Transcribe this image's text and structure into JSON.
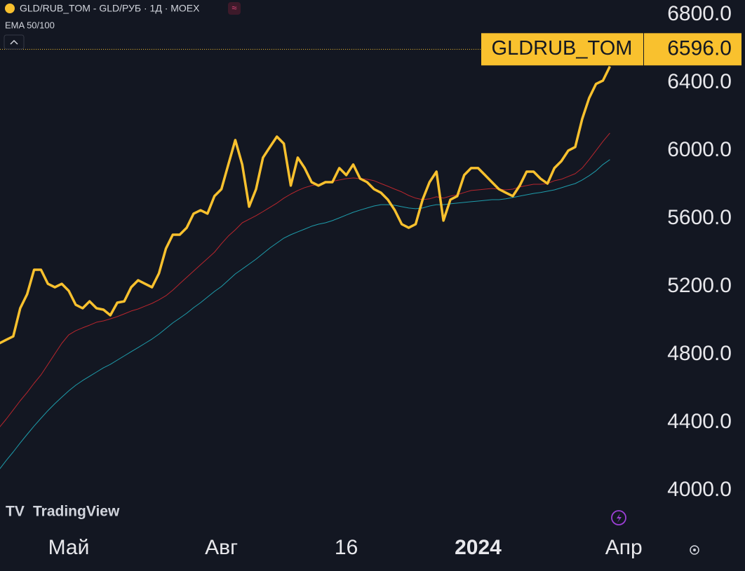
{
  "chart_data": {
    "type": "line",
    "title": "GLD/RUB_TOM - GLD/РУБ · 1Д · MOEX",
    "subtitle": "EMA 50/100",
    "watermark": "TradingView",
    "categories": [
      null,
      null,
      null,
      null,
      null,
      null,
      null,
      null,
      null,
      null,
      "Май",
      null,
      null,
      null,
      null,
      null,
      null,
      null,
      null,
      null,
      null,
      null,
      null,
      null,
      null,
      null,
      null,
      null,
      null,
      null,
      null,
      null,
      "Авг",
      null,
      null,
      null,
      null,
      null,
      null,
      null,
      null,
      null,
      null,
      null,
      null,
      null,
      null,
      null,
      null,
      null,
      "16",
      null,
      null,
      null,
      null,
      null,
      null,
      null,
      null,
      null,
      null,
      null,
      null,
      null,
      null,
      null,
      null,
      null,
      null,
      "2024",
      null,
      null,
      null,
      null,
      null,
      null,
      null,
      null,
      null,
      null,
      null,
      null,
      null,
      null,
      null,
      null,
      null,
      null,
      null,
      null,
      "Апр"
    ],
    "series": [
      {
        "name": "GLDRUB_TOM",
        "color": "#f9c12e",
        "values": [
          4866,
          4887,
          4907,
          5072,
          5155,
          5299,
          5299,
          5216,
          5196,
          5216,
          5175,
          5093,
          5072,
          5113,
          5072,
          5064,
          5031,
          5105,
          5113,
          5196,
          5237,
          5216,
          5196,
          5278,
          5423,
          5505,
          5505,
          5546,
          5629,
          5649,
          5629,
          5732,
          5773,
          5918,
          6062,
          5918,
          5670,
          5773,
          5959,
          6021,
          6082,
          6041,
          5794,
          5959,
          5897,
          5814,
          5794,
          5814,
          5814,
          5897,
          5856,
          5918,
          5835,
          5814,
          5773,
          5752,
          5711,
          5649,
          5567,
          5546,
          5567,
          5711,
          5814,
          5876,
          5588,
          5711,
          5732,
          5856,
          5897,
          5897,
          5856,
          5814,
          5773,
          5752,
          5732,
          5794,
          5876,
          5876,
          5835,
          5806,
          5897,
          5938,
          6000,
          6021,
          6186,
          6309,
          6392,
          6412,
          6495,
          null,
          null
        ]
      },
      {
        "color": "#b8262d",
        "values": [
          4371,
          4421,
          4474,
          4528,
          4577,
          4631,
          4680,
          4742,
          4804,
          4866,
          4916,
          4940,
          4957,
          4973,
          4990,
          4998,
          5010,
          5023,
          5039,
          5056,
          5068,
          5085,
          5101,
          5122,
          5146,
          5179,
          5217,
          5254,
          5291,
          5328,
          5365,
          5402,
          5452,
          5497,
          5534,
          5575,
          5596,
          5617,
          5641,
          5666,
          5691,
          5720,
          5744,
          5765,
          5782,
          5794,
          5802,
          5810,
          5819,
          5827,
          5835,
          5839,
          5835,
          5831,
          5823,
          5806,
          5790,
          5773,
          5757,
          5736,
          5720,
          5711,
          5716,
          5728,
          5720,
          5732,
          5740,
          5753,
          5765,
          5769,
          5773,
          5777,
          5773,
          5769,
          5773,
          5786,
          5794,
          5802,
          5802,
          5806,
          5823,
          5831,
          5848,
          5864,
          5897,
          5947,
          6000,
          6054,
          6103,
          null,
          null
        ]
      },
      {
        "color": "#1e9cab",
        "values": [
          4124,
          4177,
          4227,
          4280,
          4330,
          4379,
          4425,
          4470,
          4511,
          4549,
          4586,
          4619,
          4647,
          4672,
          4697,
          4722,
          4742,
          4767,
          4792,
          4817,
          4841,
          4866,
          4891,
          4920,
          4953,
          4986,
          5014,
          5043,
          5076,
          5105,
          5138,
          5171,
          5200,
          5237,
          5274,
          5303,
          5332,
          5361,
          5394,
          5427,
          5456,
          5485,
          5505,
          5522,
          5538,
          5555,
          5567,
          5575,
          5588,
          5604,
          5621,
          5637,
          5650,
          5662,
          5674,
          5682,
          5682,
          5678,
          5670,
          5662,
          5658,
          5662,
          5674,
          5682,
          5682,
          5687,
          5691,
          5695,
          5699,
          5703,
          5707,
          5711,
          5711,
          5716,
          5724,
          5732,
          5740,
          5748,
          5753,
          5761,
          5769,
          5781,
          5794,
          5806,
          5827,
          5852,
          5881,
          5918,
          5947,
          null,
          null
        ]
      }
    ],
    "last_price": {
      "value": 6596,
      "label": "6596.0"
    },
    "ylim": [
      3753,
      6886
    ],
    "yticks": [
      {
        "value": 4000,
        "label": "4000.0"
      },
      {
        "value": 4400,
        "label": "4400.0"
      },
      {
        "value": 4800,
        "label": "4800.0"
      },
      {
        "value": 5200,
        "label": "5200.0"
      },
      {
        "value": 5600,
        "label": "5600.0"
      },
      {
        "value": 6000,
        "label": "6000.0"
      },
      {
        "value": 6400,
        "label": "6400.0"
      },
      {
        "value": 6800,
        "label": "6800.0"
      }
    ],
    "grid": false
  }
}
